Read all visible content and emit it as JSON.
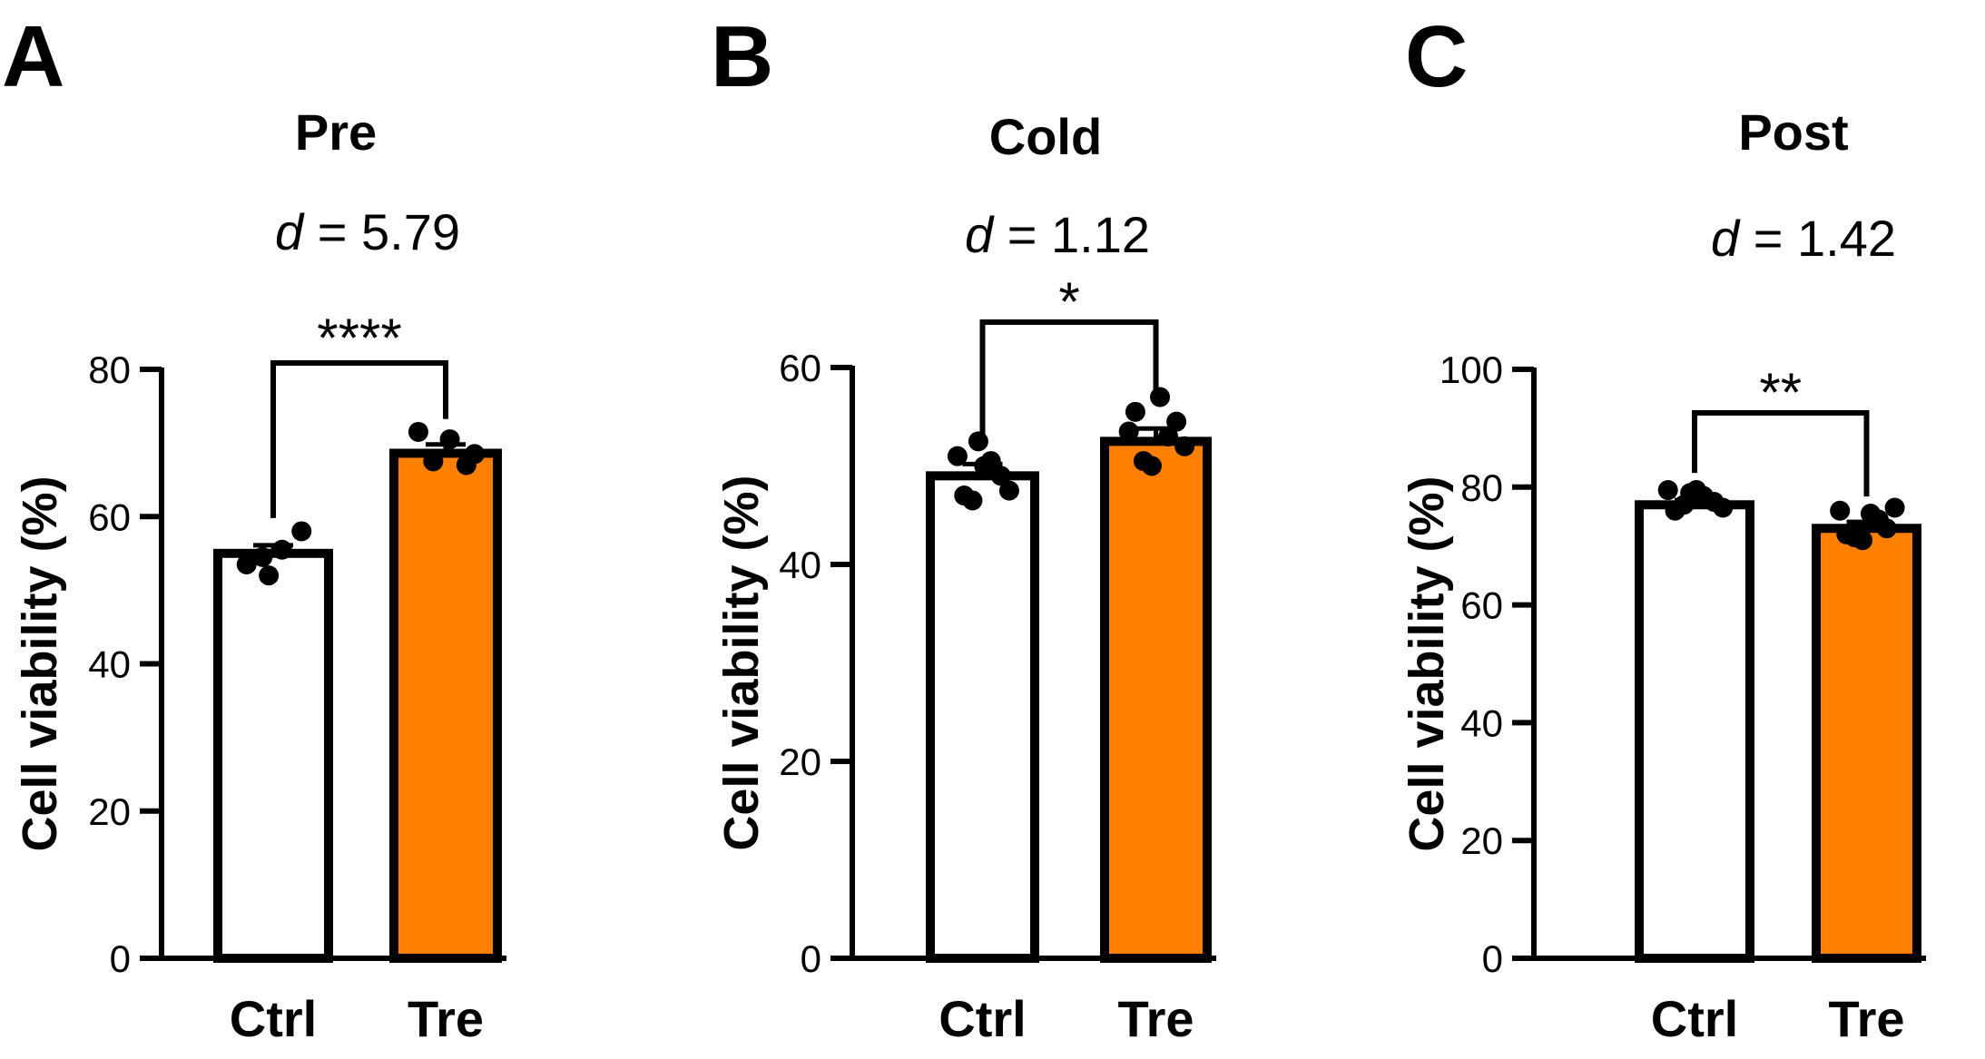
{
  "chart_data": [
    {
      "type": "bar",
      "panel": "A",
      "title": "Pre",
      "effect_symbol": "d",
      "effect_value": " = 5.79",
      "ylabel": "Cell viability (%)",
      "ylim": [
        0,
        80
      ],
      "yticks": [
        0,
        20,
        40,
        60,
        80
      ],
      "categories": [
        "Ctrl",
        "Tre"
      ],
      "values": [
        55.0,
        68.6
      ],
      "sem": [
        1.1,
        1.2
      ],
      "colors": [
        "#ffffff",
        "#ff8000"
      ],
      "points": [
        [
          53.5,
          54.5,
          55.5,
          58.0,
          52.0
        ],
        [
          71.5,
          67.5,
          70.5,
          67.0,
          68.5
        ]
      ],
      "significance": "****"
    },
    {
      "type": "bar",
      "panel": "B",
      "title": "Cold",
      "effect_symbol": "d",
      "effect_value": " = 1.12",
      "ylabel": "Cell viability (%)",
      "ylim": [
        0,
        60
      ],
      "yticks": [
        0,
        20,
        40,
        60
      ],
      "categories": [
        "Ctrl",
        "Tre"
      ],
      "values": [
        49.0,
        52.5
      ],
      "sem": [
        1.2,
        1.3
      ],
      "colors": [
        "#ffffff",
        "#ff8000"
      ],
      "points": [
        [
          51.0,
          46.5,
          50.5,
          47.5,
          52.5,
          49.0,
          47.0,
          50.0
        ],
        [
          53.5,
          50.5,
          57.0,
          54.5,
          52.0,
          55.5,
          53.0,
          50.0
        ]
      ],
      "significance": "*"
    },
    {
      "type": "bar",
      "panel": "C",
      "title": "Post",
      "effect_symbol": "d",
      "effect_value": " = 1.42",
      "ylabel": "Cell viability (%)",
      "ylim": [
        0,
        100
      ],
      "yticks": [
        0,
        20,
        40,
        60,
        80,
        100
      ],
      "categories": [
        "Ctrl",
        "Tre"
      ],
      "values": [
        77.0,
        73.0
      ],
      "sem": [
        0.8,
        1.1
      ],
      "colors": [
        "#ffffff",
        "#ff8000"
      ],
      "points": [
        [
          79.5,
          77.0,
          78.5,
          76.5,
          79.0,
          77.5,
          76.0,
          79.5
        ],
        [
          76.0,
          71.5,
          75.5,
          73.0,
          76.5,
          72.0,
          74.5,
          71.0
        ]
      ],
      "significance": "**"
    }
  ]
}
